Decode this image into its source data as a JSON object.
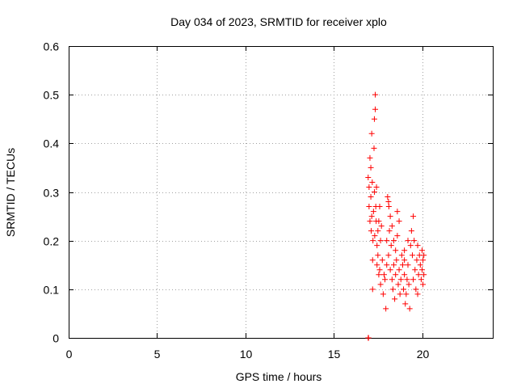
{
  "chart_data": {
    "type": "scatter",
    "title": "Day 034 of 2023, SRMTID for receiver xplo",
    "xlabel": "GPS time / hours",
    "ylabel": "SRMTID / TECUs",
    "xlim": [
      0,
      24
    ],
    "ylim": [
      0,
      0.6
    ],
    "xticks": [
      0,
      5,
      10,
      15,
      20
    ],
    "xtick_labels": [
      "0",
      "5",
      "10",
      "15",
      "20"
    ],
    "yticks": [
      0,
      0.1,
      0.2,
      0.3,
      0.4,
      0.5,
      0.6
    ],
    "ytick_labels": [
      "0",
      "0.1",
      "0.2",
      "0.3",
      "0.4",
      "0.5",
      "0.6"
    ],
    "grid": true,
    "marker": "+",
    "color": "#ff0000",
    "series": [
      {
        "name": "SRMTID",
        "points": [
          [
            16.95,
            0.0
          ],
          [
            16.97,
            0.0
          ],
          [
            16.95,
            0.33
          ],
          [
            17.0,
            0.31
          ],
          [
            17.0,
            0.27
          ],
          [
            17.05,
            0.24
          ],
          [
            17.05,
            0.37
          ],
          [
            17.1,
            0.35
          ],
          [
            17.1,
            0.29
          ],
          [
            17.12,
            0.22
          ],
          [
            17.15,
            0.42
          ],
          [
            17.15,
            0.25
          ],
          [
            17.18,
            0.32
          ],
          [
            17.2,
            0.1
          ],
          [
            17.2,
            0.16
          ],
          [
            17.22,
            0.2
          ],
          [
            17.25,
            0.26
          ],
          [
            17.28,
            0.39
          ],
          [
            17.3,
            0.45
          ],
          [
            17.3,
            0.3
          ],
          [
            17.32,
            0.21
          ],
          [
            17.35,
            0.5
          ],
          [
            17.35,
            0.47
          ],
          [
            17.38,
            0.27
          ],
          [
            17.4,
            0.24
          ],
          [
            17.42,
            0.31
          ],
          [
            17.45,
            0.19
          ],
          [
            17.45,
            0.15
          ],
          [
            17.5,
            0.22
          ],
          [
            17.5,
            0.17
          ],
          [
            17.55,
            0.13
          ],
          [
            17.55,
            0.24
          ],
          [
            17.6,
            0.27
          ],
          [
            17.6,
            0.14
          ],
          [
            17.65,
            0.2
          ],
          [
            17.65,
            0.11
          ],
          [
            17.7,
            0.23
          ],
          [
            17.75,
            0.16
          ],
          [
            17.8,
            0.09
          ],
          [
            17.85,
            0.13
          ],
          [
            17.9,
            0.12
          ],
          [
            17.95,
            0.06
          ],
          [
            18.0,
            0.15
          ],
          [
            18.0,
            0.2
          ],
          [
            18.05,
            0.29
          ],
          [
            18.1,
            0.28
          ],
          [
            18.1,
            0.17
          ],
          [
            18.15,
            0.22
          ],
          [
            18.2,
            0.14
          ],
          [
            18.2,
            0.25
          ],
          [
            18.25,
            0.19
          ],
          [
            18.3,
            0.12
          ],
          [
            18.3,
            0.23
          ],
          [
            18.35,
            0.1
          ],
          [
            18.4,
            0.15
          ],
          [
            18.45,
            0.08
          ],
          [
            18.5,
            0.13
          ],
          [
            18.5,
            0.18
          ],
          [
            18.55,
            0.16
          ],
          [
            18.6,
            0.26
          ],
          [
            18.6,
            0.21
          ],
          [
            18.65,
            0.11
          ],
          [
            18.7,
            0.14
          ],
          [
            18.75,
            0.09
          ],
          [
            18.8,
            0.12
          ],
          [
            18.85,
            0.17
          ],
          [
            18.9,
            0.15
          ],
          [
            18.95,
            0.1
          ],
          [
            19.0,
            0.13
          ],
          [
            19.0,
            0.18
          ],
          [
            19.05,
            0.07
          ],
          [
            19.1,
            0.09
          ],
          [
            19.15,
            0.12
          ],
          [
            19.2,
            0.15
          ],
          [
            19.25,
            0.11
          ],
          [
            19.3,
            0.06
          ],
          [
            19.35,
            0.19
          ],
          [
            19.4,
            0.22
          ],
          [
            19.45,
            0.17
          ],
          [
            19.5,
            0.25
          ],
          [
            19.55,
            0.2
          ],
          [
            19.6,
            0.14
          ],
          [
            19.65,
            0.1
          ],
          [
            19.7,
            0.16
          ],
          [
            19.75,
            0.19
          ],
          [
            19.8,
            0.13
          ],
          [
            19.85,
            0.17
          ],
          [
            19.9,
            0.15
          ],
          [
            19.95,
            0.12
          ],
          [
            20.0,
            0.18
          ],
          [
            20.0,
            0.14
          ],
          [
            20.05,
            0.16
          ],
          [
            20.1,
            0.13
          ],
          [
            20.1,
            0.17
          ],
          [
            18.12,
            0.27
          ],
          [
            18.4,
            0.2
          ],
          [
            18.7,
            0.24
          ],
          [
            19.0,
            0.16
          ],
          [
            19.2,
            0.2
          ],
          [
            19.5,
            0.12
          ],
          [
            19.75,
            0.09
          ],
          [
            20.05,
            0.11
          ]
        ]
      }
    ]
  }
}
